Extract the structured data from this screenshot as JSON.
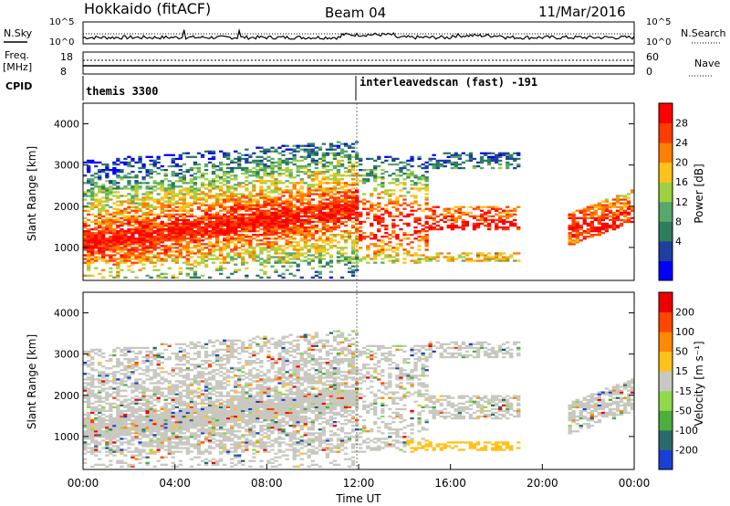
{
  "header": {
    "station": "Hokkaido (fitACF)",
    "beam": "Beam 04",
    "date": "11/Mar/2016"
  },
  "top_panels": {
    "nsky_label": "N.Sky",
    "nsearch_label": "N.Search",
    "freq_label_1": "Freq.",
    "freq_label_2": "[MHz]",
    "nave_label": "Nave",
    "cpid_label": "CPID",
    "noise_ticks_left": [
      "10^5",
      "10^0"
    ],
    "noise_ticks_right": [
      "10^5",
      "10^0"
    ],
    "freq_ticks": [
      "18",
      "8"
    ],
    "nave_ticks": [
      "60",
      "0"
    ],
    "cpid_segments": [
      {
        "name": "themis 3300",
        "start_hour": 0,
        "end_hour": 12
      },
      {
        "name": "interleavedscan (fast) -191",
        "start_hour": 12,
        "end_hour": 24
      }
    ]
  },
  "chart_data": [
    {
      "type": "heatmap",
      "title": "",
      "ylabel": "Slant Range [km]",
      "xlabel": "",
      "ylim": [
        200,
        4500
      ],
      "xlim": [
        0,
        24
      ],
      "yticks": [
        "1000",
        "2000",
        "3000",
        "4000"
      ],
      "colorbar_label": "Power [dB]",
      "colorbar_ticks": [
        "28",
        "24",
        "20",
        "16",
        "12",
        "8",
        "4"
      ],
      "colorbar_colors": [
        "#0000ff",
        "#1e3fa0",
        "#2e7d5c",
        "#57a86a",
        "#9fd13f",
        "#ffc21a",
        "#ff7f00",
        "#ff3b00",
        "#ff0000"
      ]
    },
    {
      "type": "heatmap",
      "title": "",
      "ylabel": "Slant Range [km]",
      "xlabel": "Time UT",
      "ylim": [
        200,
        4500
      ],
      "xlim": [
        0,
        24
      ],
      "yticks": [
        "1000",
        "2000",
        "3000",
        "4000"
      ],
      "xticks": [
        "00:00",
        "04:00",
        "08:00",
        "12:00",
        "16:00",
        "20:00",
        "00:00"
      ],
      "colorbar_label": "Velocity [m s⁻¹]",
      "colorbar_ticks": [
        "200",
        "100",
        "50",
        "15",
        "-15",
        "-50",
        "-100",
        "-200"
      ],
      "colorbar_colors": [
        "#1a3fd4",
        "#2a6a6a",
        "#4bae3d",
        "#8fd94a",
        "#c8c8c0",
        "#ffc21a",
        "#ff8a00",
        "#ff4500",
        "#ee0000"
      ]
    }
  ]
}
